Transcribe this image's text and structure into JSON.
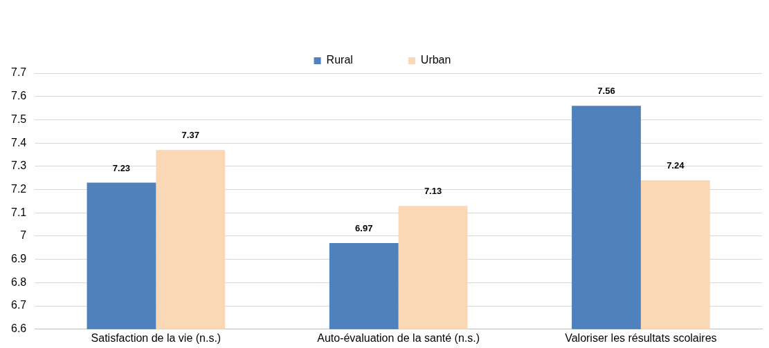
{
  "chart_data": {
    "type": "bar",
    "categories": [
      "Satisfaction de la vie (n.s.)",
      "Auto-évaluation de la santé (n.s.)",
      "Valoriser les résultats scolaires"
    ],
    "series": [
      {
        "name": "Rural",
        "color": "#4f81bd",
        "values": [
          7.23,
          6.97,
          7.56
        ]
      },
      {
        "name": "Urban",
        "color": "#fad7b5",
        "values": [
          7.37,
          7.13,
          7.24
        ]
      }
    ],
    "ylim": [
      6.6,
      7.7
    ],
    "yticks": [
      6.6,
      6.7,
      6.8,
      6.9,
      7,
      7.1,
      7.2,
      7.3,
      7.4,
      7.5,
      7.6,
      7.7
    ],
    "grid": "y",
    "legend": "top",
    "data_labels": true
  }
}
